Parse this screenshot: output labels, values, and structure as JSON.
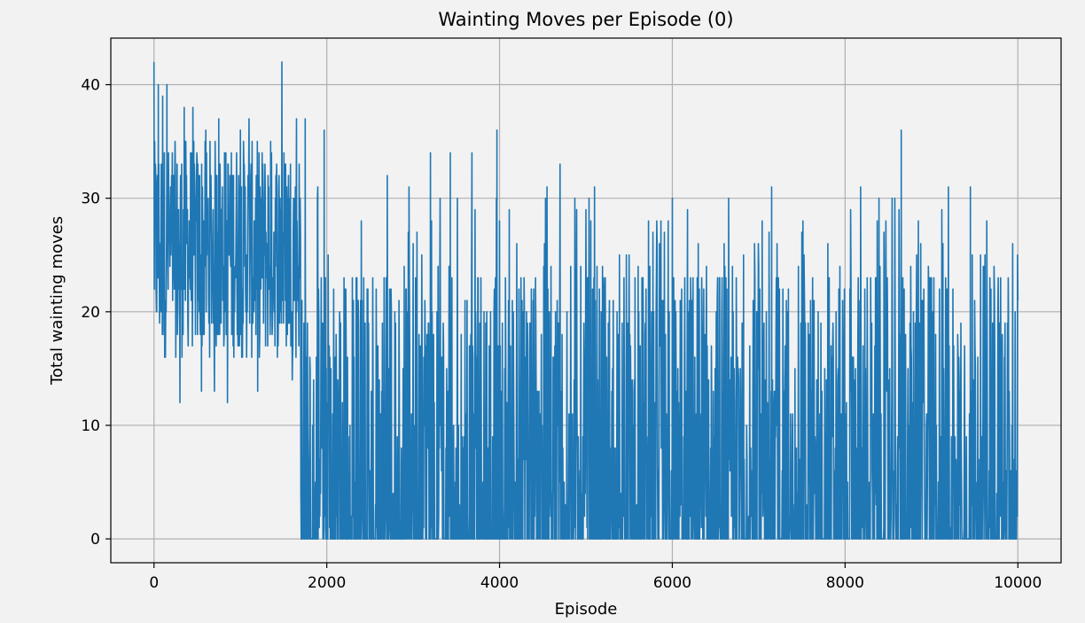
{
  "chart_data": {
    "type": "line",
    "title": "Wainting Moves per Episode (0)",
    "xlabel": "Episode",
    "ylabel": "Total wainting moves",
    "xlim": [
      -500,
      10500
    ],
    "ylim": [
      -2.1,
      44.1
    ],
    "xticks": [
      0,
      2000,
      4000,
      6000,
      8000,
      10000
    ],
    "yticks": [
      0,
      10,
      20,
      30,
      40
    ],
    "grid": true,
    "legend": "none",
    "colors": {
      "line": "#1f77b4",
      "background": "#f2f2f2",
      "grid": "#b0b0b0"
    },
    "series": [
      {
        "episodes": [
          0,
          10000
        ],
        "points": [
          [
            0,
            42
          ],
          [
            50,
            40
          ],
          [
            100,
            39
          ],
          [
            150,
            40
          ],
          [
            300,
            12
          ],
          [
            350,
            38
          ],
          [
            450,
            38
          ],
          [
            550,
            13
          ],
          [
            600,
            36
          ],
          [
            700,
            13
          ],
          [
            750,
            37
          ],
          [
            850,
            12
          ],
          [
            1000,
            36
          ],
          [
            1100,
            37
          ],
          [
            1200,
            13
          ],
          [
            1350,
            35
          ],
          [
            1480,
            42
          ],
          [
            1600,
            14
          ],
          [
            1650,
            37
          ],
          [
            1700,
            4
          ],
          [
            1720,
            0
          ],
          [
            1750,
            37
          ],
          [
            1900,
            0
          ],
          [
            1970,
            36
          ],
          [
            2200,
            23
          ],
          [
            2400,
            28
          ],
          [
            2700,
            32
          ],
          [
            3000,
            26
          ],
          [
            3200,
            34
          ],
          [
            3430,
            34
          ],
          [
            3680,
            34
          ],
          [
            3970,
            36
          ],
          [
            4200,
            26
          ],
          [
            4550,
            31
          ],
          [
            4700,
            33
          ],
          [
            5100,
            31
          ],
          [
            5500,
            25
          ],
          [
            6000,
            30
          ],
          [
            6100,
            3
          ],
          [
            6300,
            26
          ],
          [
            6600,
            26
          ],
          [
            7000,
            24
          ],
          [
            7150,
            31
          ],
          [
            7500,
            27
          ],
          [
            7800,
            26
          ],
          [
            8180,
            31
          ],
          [
            8450,
            27
          ],
          [
            8650,
            36
          ],
          [
            9000,
            23
          ],
          [
            9120,
            29
          ],
          [
            9450,
            31
          ],
          [
            9600,
            24
          ],
          [
            9800,
            23
          ],
          [
            10000,
            21
          ]
        ],
        "segments": [
          {
            "from": 0,
            "to": 1700,
            "min": 12,
            "max": 42,
            "typical_low": 16,
            "typical_high": 35
          },
          {
            "from": 1700,
            "to": 10000,
            "min": 0,
            "max": 36,
            "typical_low": 0,
            "typical_high": 24
          }
        ]
      }
    ]
  }
}
